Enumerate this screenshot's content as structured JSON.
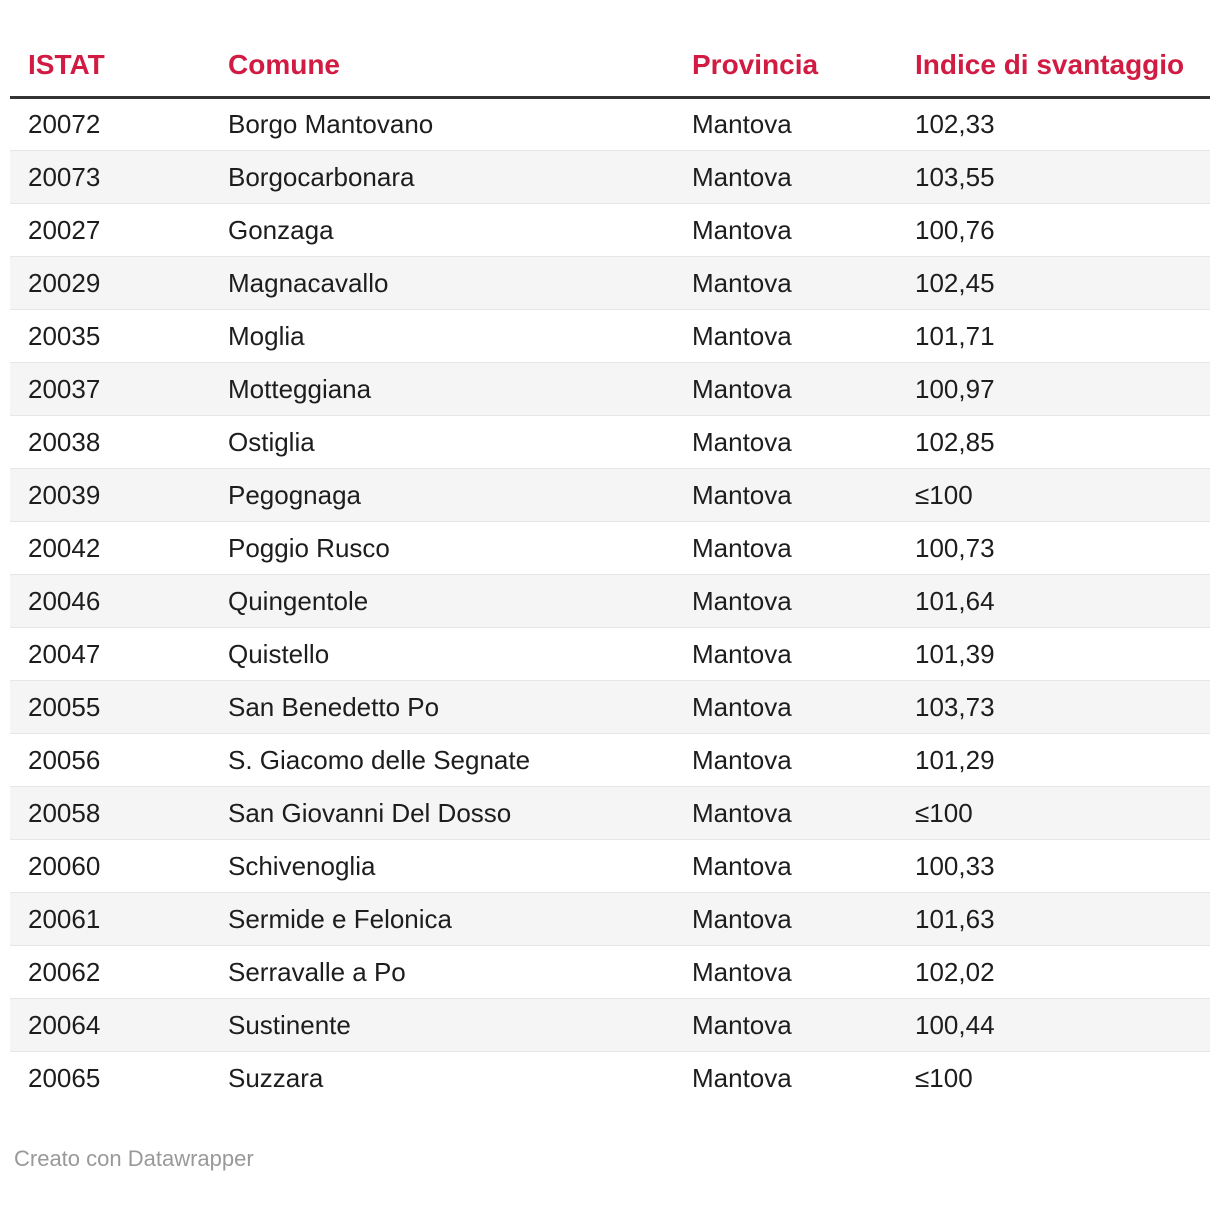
{
  "chart_data": {
    "type": "table",
    "columns": [
      "ISTAT",
      "Comune",
      "Provincia",
      "Indice di svantaggio"
    ],
    "rows": [
      [
        "20072",
        "Borgo Mantovano",
        "Mantova",
        "102,33"
      ],
      [
        "20073",
        "Borgocarbonara",
        "Mantova",
        "103,55"
      ],
      [
        "20027",
        "Gonzaga",
        "Mantova",
        "100,76"
      ],
      [
        "20029",
        "Magnacavallo",
        "Mantova",
        "102,45"
      ],
      [
        "20035",
        "Moglia",
        "Mantova",
        "101,71"
      ],
      [
        "20037",
        "Motteggiana",
        "Mantova",
        "100,97"
      ],
      [
        "20038",
        "Ostiglia",
        "Mantova",
        "102,85"
      ],
      [
        "20039",
        "Pegognaga",
        "Mantova",
        "≤100"
      ],
      [
        "20042",
        "Poggio Rusco",
        "Mantova",
        "100,73"
      ],
      [
        "20046",
        "Quingentole",
        "Mantova",
        "101,64"
      ],
      [
        "20047",
        "Quistello",
        "Mantova",
        "101,39"
      ],
      [
        "20055",
        "San Benedetto Po",
        "Mantova",
        "103,73"
      ],
      [
        "20056",
        "S. Giacomo delle Segnate",
        "Mantova",
        "101,29"
      ],
      [
        "20058",
        "San Giovanni Del Dosso",
        "Mantova",
        "≤100"
      ],
      [
        "20060",
        "Schivenoglia",
        "Mantova",
        "100,33"
      ],
      [
        "20061",
        "Sermide e Felonica",
        "Mantova",
        "101,63"
      ],
      [
        "20062",
        "Serravalle a Po",
        "Mantova",
        "102,02"
      ],
      [
        "20064",
        "Sustinente",
        "Mantova",
        "100,44"
      ],
      [
        "20065",
        "Suzzara",
        "Mantova",
        "≤100"
      ]
    ],
    "legend_position": "none",
    "grid": "horizontal-row-dividers",
    "striped": true
  },
  "footer": {
    "credit": "Creato con Datawrapper"
  },
  "colors": {
    "header_text": "#d11b42",
    "header_rule": "#333333",
    "body_text": "#1d1d1d",
    "stripe_background": "#f5f5f5",
    "row_divider": "#e6e6e6",
    "footer_text": "#999999",
    "page_background": "#ffffff"
  }
}
